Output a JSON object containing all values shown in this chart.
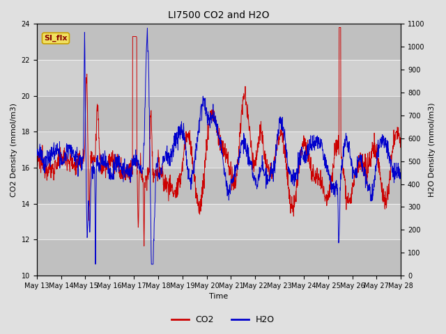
{
  "title": "LI7500 CO2 and H2O",
  "xlabel": "Time",
  "ylabel_left": "CO2 Density (mmol/m3)",
  "ylabel_right": "H2O Density (mmol/m3)",
  "ylim_left": [
    10,
    24
  ],
  "ylim_right": [
    0,
    1100
  ],
  "yticks_left": [
    10,
    12,
    14,
    16,
    18,
    20,
    22,
    24
  ],
  "yticks_right": [
    0,
    100,
    200,
    300,
    400,
    500,
    600,
    700,
    800,
    900,
    1000,
    1100
  ],
  "xtick_labels": [
    "May 13",
    "May 14",
    "May 15",
    "May 16",
    "May 17",
    "May 18",
    "May 19",
    "May 20",
    "May 21",
    "May 22",
    "May 23",
    "May 24",
    "May 25",
    "May 26",
    "May 27",
    "May 28"
  ],
  "figure_bg": "#e0e0e0",
  "band_colors": [
    "#d0d0d0",
    "#c0c0c0"
  ],
  "co2_color": "#cc0000",
  "h2o_color": "#0000cc",
  "legend_label_co2": "CO2",
  "legend_label_h2o": "H2O",
  "annotation_text": "SI_flx",
  "annotation_bg": "#f0e060",
  "annotation_border": "#c8a000"
}
